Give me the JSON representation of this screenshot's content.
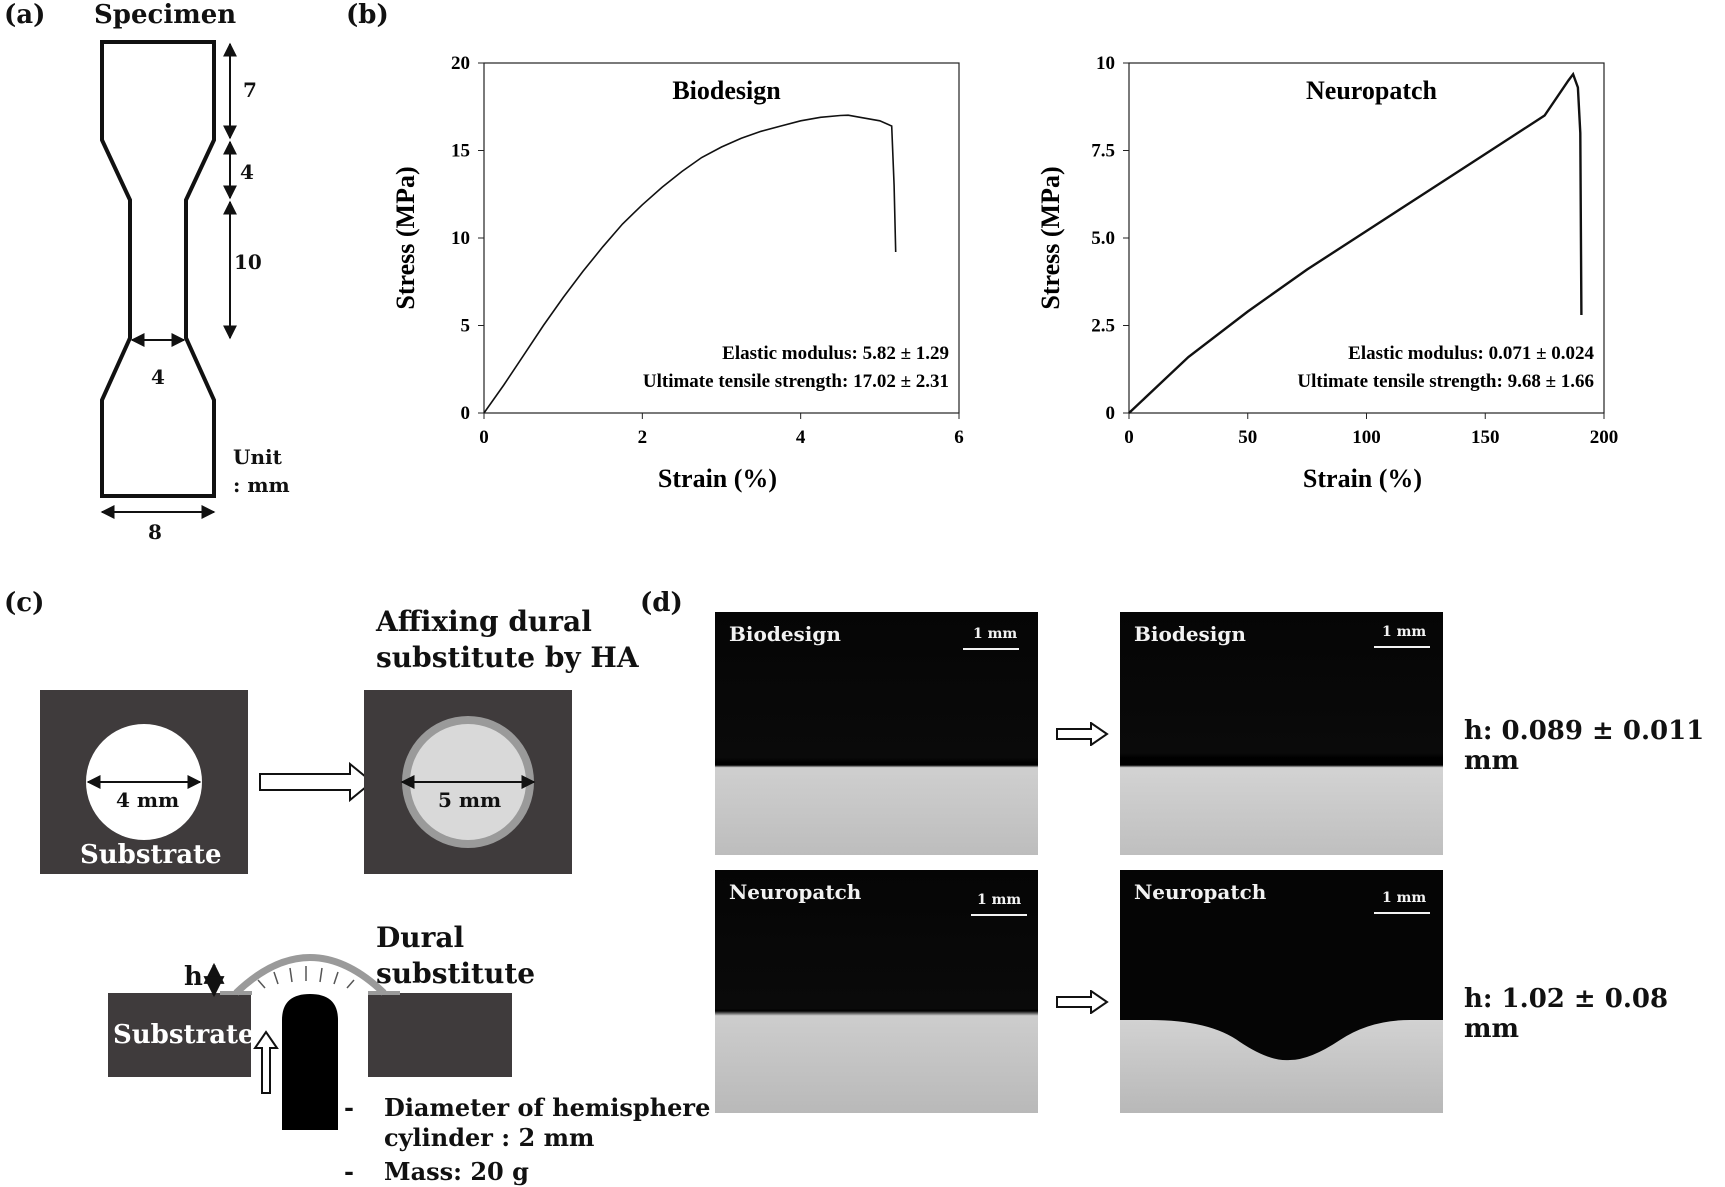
{
  "panels": {
    "a": "(a)",
    "b": "(b)",
    "c": "(c)",
    "d": "(d)"
  },
  "specimen": {
    "title": "Specimen",
    "dims": [
      "7",
      "4",
      "10",
      "4",
      "8"
    ],
    "unit_line1": "Unit",
    "unit_line2": ": mm"
  },
  "chart_data": [
    {
      "type": "line",
      "title": "Biodesign",
      "xlabel": "Strain (%)",
      "ylabel": "Stress (MPa)",
      "xlim": [
        0,
        6
      ],
      "ylim": [
        0,
        20
      ],
      "xticks": [
        0,
        2,
        4,
        6
      ],
      "yticks": [
        0,
        5,
        10,
        15,
        20
      ],
      "x": [
        0,
        0.25,
        0.5,
        0.75,
        1.0,
        1.25,
        1.5,
        1.75,
        2.0,
        2.25,
        2.5,
        2.75,
        3.0,
        3.25,
        3.5,
        3.75,
        4.0,
        4.25,
        4.5,
        4.6,
        4.75,
        5.0,
        5.15,
        5.18,
        5.2
      ],
      "y": [
        0,
        1.6,
        3.3,
        5.0,
        6.6,
        8.1,
        9.5,
        10.8,
        11.9,
        12.9,
        13.8,
        14.6,
        15.2,
        15.7,
        16.1,
        16.4,
        16.7,
        16.9,
        17.0,
        17.02,
        16.9,
        16.7,
        16.4,
        13.0,
        9.2
      ],
      "annotations": [
        "Elastic modulus: 5.82 ± 1.29",
        "Ultimate tensile strength: 17.02 ± 2.31"
      ]
    },
    {
      "type": "line",
      "title": "Neuropatch",
      "xlabel": "Strain (%)",
      "ylabel": "Stress (MPa)",
      "xlim": [
        0,
        200
      ],
      "ylim": [
        0,
        10
      ],
      "xticks": [
        0,
        50,
        100,
        150,
        200
      ],
      "yticks": [
        "0",
        "2.5",
        "5.0",
        "7.5",
        "10"
      ],
      "x": [
        0,
        25,
        50,
        75,
        100,
        125,
        150,
        175,
        185,
        187,
        189,
        190,
        190.5
      ],
      "y": [
        0,
        1.6,
        2.9,
        4.1,
        5.2,
        6.3,
        7.4,
        8.5,
        9.5,
        9.68,
        9.3,
        8.0,
        2.8
      ],
      "annotations": [
        "Elastic modulus: 0.071 ± 0.024",
        "Ultimate tensile strength: 9.68 ± 1.66"
      ]
    }
  ],
  "panel_c": {
    "affix_title_1": "Affixing dural",
    "affix_title_2": "substitute by HA",
    "substrate": "Substrate",
    "hole_dim": "4 mm",
    "patch_dim": "5 mm",
    "dural_1": "Dural",
    "dural_2": "substitute",
    "h": "h",
    "substrate_side": "Substrate",
    "bullet1_a": "Diameter of hemisphere",
    "bullet1_b": "cylinder : 2 mm",
    "bullet2": "Mass: 20 g",
    "dash": "-"
  },
  "panel_d": {
    "top_left": "Biodesign",
    "top_right": "Biodesign",
    "bottom_left": "Neuropatch",
    "bottom_right": "Neuropatch",
    "scale": "1 mm",
    "h_top": "h: 0.089 ± 0.011 mm",
    "h_bottom": "h: 1.02 ± 0.08 mm"
  },
  "colors": {
    "substrate": "#3f3b3c",
    "patch_outer": "#9a9a9a",
    "patch_inner": "#d9d9d9"
  }
}
